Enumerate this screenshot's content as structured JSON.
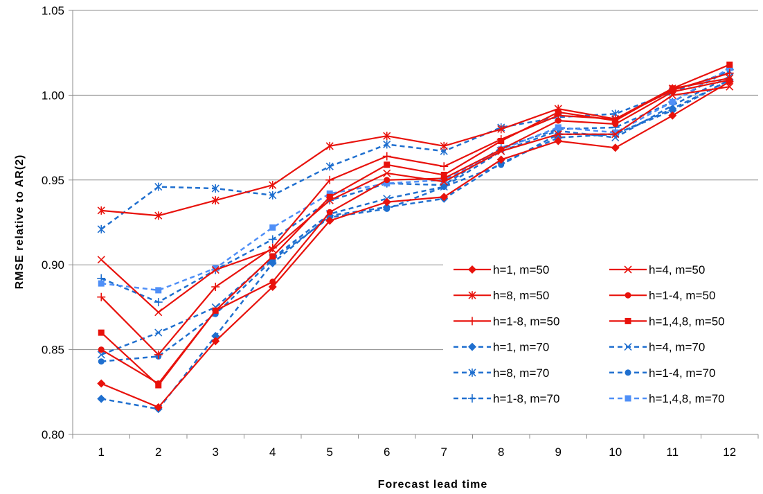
{
  "chart_data": {
    "type": "line",
    "title": "",
    "xlabel": "Forecast lead time",
    "ylabel": "RMSE relative to AR(2)",
    "categories": [
      "1",
      "2",
      "3",
      "4",
      "5",
      "6",
      "7",
      "8",
      "9",
      "10",
      "11",
      "12"
    ],
    "ylim": [
      0.8,
      1.05
    ],
    "yticks": [
      0.8,
      0.85,
      0.9,
      0.95,
      1.0,
      1.05
    ],
    "ytick_labels": [
      "0.80",
      "0.85",
      "0.90",
      "0.95",
      "1.00",
      "1.05"
    ],
    "grid": "horizontal",
    "legend_position": "bottom-right",
    "colors": {
      "m50": "#e8120c",
      "m70": "#1f6fcf",
      "m70_square": "#4f8ff7"
    },
    "series": [
      {
        "name": "h=1, m=50",
        "marker": "diamond",
        "style": "solid",
        "color": "#e8120c",
        "values": [
          0.83,
          0.816,
          0.855,
          0.887,
          0.926,
          0.937,
          0.94,
          0.962,
          0.973,
          0.969,
          0.988,
          1.008
        ]
      },
      {
        "name": "h=4, m=50",
        "marker": "x",
        "style": "solid",
        "color": "#e8120c",
        "values": [
          0.903,
          0.872,
          0.897,
          0.909,
          0.938,
          0.954,
          0.949,
          0.967,
          0.977,
          0.977,
          1.0,
          1.005
        ]
      },
      {
        "name": "h=8, m=50",
        "marker": "asterisk",
        "style": "solid",
        "color": "#e8120c",
        "values": [
          0.932,
          0.929,
          0.938,
          0.947,
          0.97,
          0.976,
          0.97,
          0.98,
          0.992,
          0.986,
          1.004,
          1.01
        ]
      },
      {
        "name": "h=1-4, m=50",
        "marker": "circle",
        "style": "solid",
        "color": "#e8120c",
        "values": [
          0.85,
          0.83,
          0.873,
          0.89,
          0.931,
          0.95,
          0.951,
          0.968,
          0.985,
          0.983,
          1.002,
          1.009
        ]
      },
      {
        "name": "h=1-8, m=50",
        "marker": "plus",
        "style": "solid",
        "color": "#e8120c",
        "values": [
          0.881,
          0.847,
          0.887,
          0.91,
          0.95,
          0.964,
          0.958,
          0.974,
          0.988,
          0.986,
          1.003,
          1.013
        ]
      },
      {
        "name": "h=1,4,8, m=50",
        "marker": "square",
        "style": "solid",
        "color": "#e8120c",
        "values": [
          0.86,
          0.829,
          0.873,
          0.905,
          0.94,
          0.959,
          0.953,
          0.973,
          0.99,
          0.985,
          1.004,
          1.018
        ]
      },
      {
        "name": "h=1, m=70",
        "marker": "diamond",
        "style": "dashed",
        "color": "#1f6fcf",
        "values": [
          0.821,
          0.815,
          0.858,
          0.901,
          0.929,
          0.934,
          0.939,
          0.96,
          0.975,
          0.977,
          0.991,
          1.009
        ]
      },
      {
        "name": "h=4, m=70",
        "marker": "x",
        "style": "dashed",
        "color": "#1f6fcf",
        "values": [
          0.847,
          0.86,
          0.875,
          0.904,
          0.93,
          0.939,
          0.946,
          0.967,
          0.979,
          0.975,
          0.994,
          1.011
        ]
      },
      {
        "name": "h=8, m=70",
        "marker": "asterisk",
        "style": "dashed",
        "color": "#1f6fcf",
        "values": [
          0.921,
          0.946,
          0.945,
          0.941,
          0.958,
          0.971,
          0.967,
          0.981,
          0.987,
          0.989,
          1.002,
          1.014
        ]
      },
      {
        "name": "h=1-4, m=70",
        "marker": "circle",
        "style": "dashed",
        "color": "#1f6fcf",
        "values": [
          0.843,
          0.846,
          0.871,
          0.903,
          0.928,
          0.933,
          0.946,
          0.959,
          0.977,
          0.977,
          0.992,
          1.009
        ]
      },
      {
        "name": "h=1-8, m=70",
        "marker": "plus",
        "style": "dashed",
        "color": "#1f6fcf",
        "values": [
          0.892,
          0.878,
          0.897,
          0.915,
          0.938,
          0.948,
          0.947,
          0.969,
          0.98,
          0.981,
          0.996,
          1.015
        ]
      },
      {
        "name": "h=1,4,8, m=70",
        "marker": "square",
        "style": "dashed",
        "color": "#4f8ff7",
        "values": [
          0.889,
          0.885,
          0.898,
          0.922,
          0.942,
          0.948,
          0.95,
          0.968,
          0.981,
          0.978,
          0.996,
          1.016
        ]
      }
    ]
  }
}
